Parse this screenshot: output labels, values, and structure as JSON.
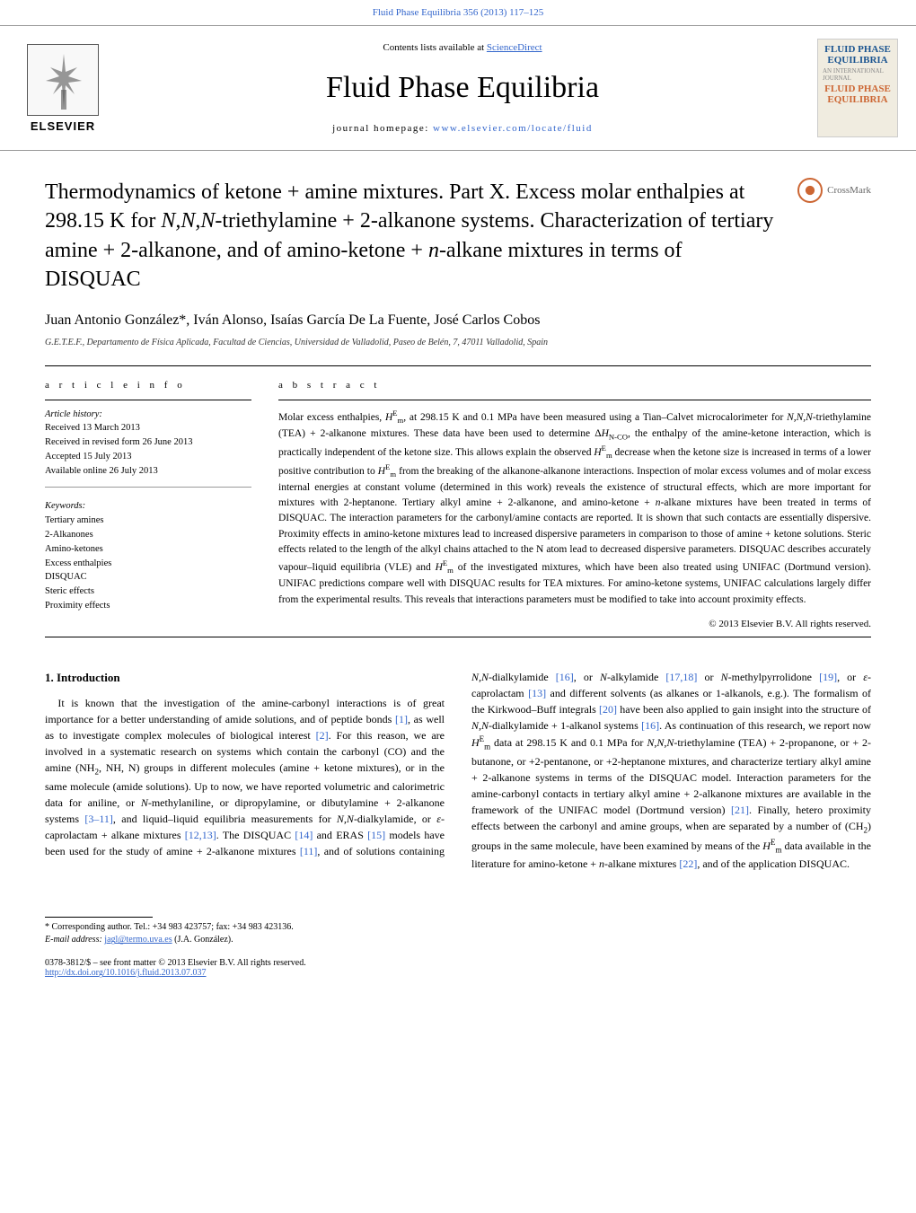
{
  "header_citation": "Fluid Phase Equilibria 356 (2013) 117–125",
  "journal": {
    "contents_text": "Contents lists available at ",
    "contents_link": "ScienceDirect",
    "name": "Fluid Phase Equilibria",
    "homepage_label": "journal homepage: ",
    "homepage_url": "www.elsevier.com/locate/fluid",
    "publisher": "ELSEVIER",
    "cover_title_1": "FLUID PHASE",
    "cover_title_2": "EQUILIBRIA",
    "cover_title_3": "FLUID PHASE",
    "cover_title_4": "EQUILIBRIA"
  },
  "crossmark_label": "CrossMark",
  "article": {
    "title_html": "Thermodynamics of ketone + amine mixtures. Part X. Excess molar enthalpies at 298.15 K for <i>N,N,N</i>-triethylamine + 2-alkanone systems. Characterization of tertiary amine + 2-alkanone, and of amino-ketone + <i>n</i>-alkane mixtures in terms of DISQUAC",
    "authors": "Juan Antonio González*, Iván Alonso, Isaías García De La Fuente, José Carlos Cobos",
    "affiliation": "G.E.T.E.F., Departamento de Física Aplicada, Facultad de Ciencias, Universidad de Valladolid, Paseo de Belén, 7, 47011 Valladolid, Spain"
  },
  "info": {
    "header": "a r t i c l e    i n f o",
    "history_label": "Article history:",
    "received": "Received 13 March 2013",
    "revised": "Received in revised form 26 June 2013",
    "accepted": "Accepted 15 July 2013",
    "online": "Available online 26 July 2013",
    "keywords_label": "Keywords:",
    "keywords": [
      "Tertiary amines",
      "2-Alkanones",
      "Amino-ketones",
      "Excess enthalpies",
      "DISQUAC",
      "Steric effects",
      "Proximity effects"
    ]
  },
  "abstract": {
    "header": "a b s t r a c t",
    "text_html": "Molar excess enthalpies, <i>H</i><sup>E</sup><sub>m</sub>, at 298.15 K and 0.1 MPa have been measured using a Tian–Calvet microcalorimeter for <i>N,N,N</i>-triethylamine (TEA) + 2-alkanone mixtures. These data have been used to determine Δ<i>H</i><sub>N-CO</sub>, the enthalpy of the amine-ketone interaction, which is practically independent of the ketone size. This allows explain the observed <i>H</i><sup>E</sup><sub>m</sub> decrease when the ketone size is increased in terms of a lower positive contribution to <i>H</i><sup>E</sup><sub>m</sub> from the breaking of the alkanone-alkanone interactions. Inspection of molar excess volumes and of molar excess internal energies at constant volume (determined in this work) reveals the existence of structural effects, which are more important for mixtures with 2-heptanone. Tertiary alkyl amine + 2-alkanone, and amino-ketone + <i>n</i>-alkane mixtures have been treated in terms of DISQUAC. The interaction parameters for the carbonyl/amine contacts are reported. It is shown that such contacts are essentially dispersive. Proximity effects in amino-ketone mixtures lead to increased dispersive parameters in comparison to those of amine + ketone solutions. Steric effects related to the length of the alkyl chains attached to the N atom lead to decreased dispersive parameters. DISQUAC describes accurately vapour–liquid equilibria (VLE) and <i>H</i><sup>E</sup><sub>m</sub> of the investigated mixtures, which have been also treated using UNIFAC (Dortmund version). UNIFAC predictions compare well with DISQUAC results for TEA mixtures. For amino-ketone systems, UNIFAC calculations largely differ from the experimental results. This reveals that interactions parameters must be modified to take into account proximity effects.",
    "copyright": "© 2013 Elsevier B.V. All rights reserved."
  },
  "intro": {
    "header": "1.  Introduction",
    "p1_html": "It is known that the investigation of the amine-carbonyl interactions is of great importance for a better understanding of amide solutions, and of peptide bonds <span class=\"ref-link\">[1]</span>, as well as to investigate complex molecules of biological interest <span class=\"ref-link\">[2]</span>. For this reason, we are involved in a systematic research on systems which contain the carbonyl (CO) and the amine (NH<sub>2</sub>, NH, N) groups in different molecules (amine + ketone mixtures), or in the same molecule (amide solutions). Up to now, we have reported volumetric and calorimetric data for aniline, or <i>N</i>-methylaniline, or dipropylamine, or dibutylamine + 2-alkanone systems <span class=\"ref-link\">[3–11]</span>, and liquid–liquid equilibria measurements for <i>N,N</i>-dialkylamide, or <i>ε</i>-caprolactam + alkane mixtures <span class=\"ref-link\">[12,13]</span>. The DISQUAC <span class=\"ref-link\">[14]</span> and ERAS <span class=\"ref-link\">[15]</span> models have been used for the study of amine + 2-alkanone mixtures <span class=\"ref-link\">[11]</span>, and of solutions containing <i>N,N</i>-dialkylamide <span class=\"ref-link\">[16]</span>, or <i>N</i>-alkylamide <span class=\"ref-link\">[17,18]</span> or <i>N</i>-methylpyrrolidone <span class=\"ref-link\">[19]</span>, or <i>ε</i>-caprolactam <span class=\"ref-link\">[13]</span> and different solvents (as alkanes or 1-alkanols, e.g.). The formalism of the Kirkwood–Buff integrals <span class=\"ref-link\">[20]</span> have been also applied to gain insight into the structure of <i>N,N</i>-dialkylamide + 1-alkanol systems <span class=\"ref-link\">[16]</span>. As continuation of this research, we report now <i>H</i><sup>E</sup><sub>m</sub> data at 298.15 K and 0.1 MPa for <i>N,N,N</i>-triethylamine (TEA) + 2-propanone, or + 2-butanone, or +2-pentanone, or +2-heptanone mixtures, and characterize tertiary alkyl amine + 2-alkanone systems in terms of the DISQUAC model. Interaction parameters for the amine-carbonyl contacts in tertiary alkyl amine + 2-alkanone mixtures are available in the framework of the UNIFAC model (Dortmund version) <span class=\"ref-link\">[21]</span>. Finally, hetero proximity effects between the carbonyl and amine groups, when are separated by a number of (CH<sub>2</sub>) groups in the same molecule, have been examined by means of the <i>H</i><sup>E</sup><sub>m</sub> data available in the literature for amino-ketone + <i>n</i>-alkane mixtures <span class=\"ref-link\">[22]</span>, and of the application DISQUAC."
  },
  "footer": {
    "corresp": "* Corresponding author. Tel.: +34 983 423757; fax: +34 983 423136.",
    "email_label": "E-mail address: ",
    "email": "jagl@termo.uva.es",
    "email_name": " (J.A. González).",
    "issn": "0378-3812/$ – see front matter © 2013 Elsevier B.V. All rights reserved.",
    "doi": "http://dx.doi.org/10.1016/j.fluid.2013.07.037"
  },
  "colors": {
    "link": "#3366cc",
    "text": "#000000",
    "border": "#999999",
    "cover_bg": "#f0ece0",
    "cover_text": "#1a5490"
  }
}
